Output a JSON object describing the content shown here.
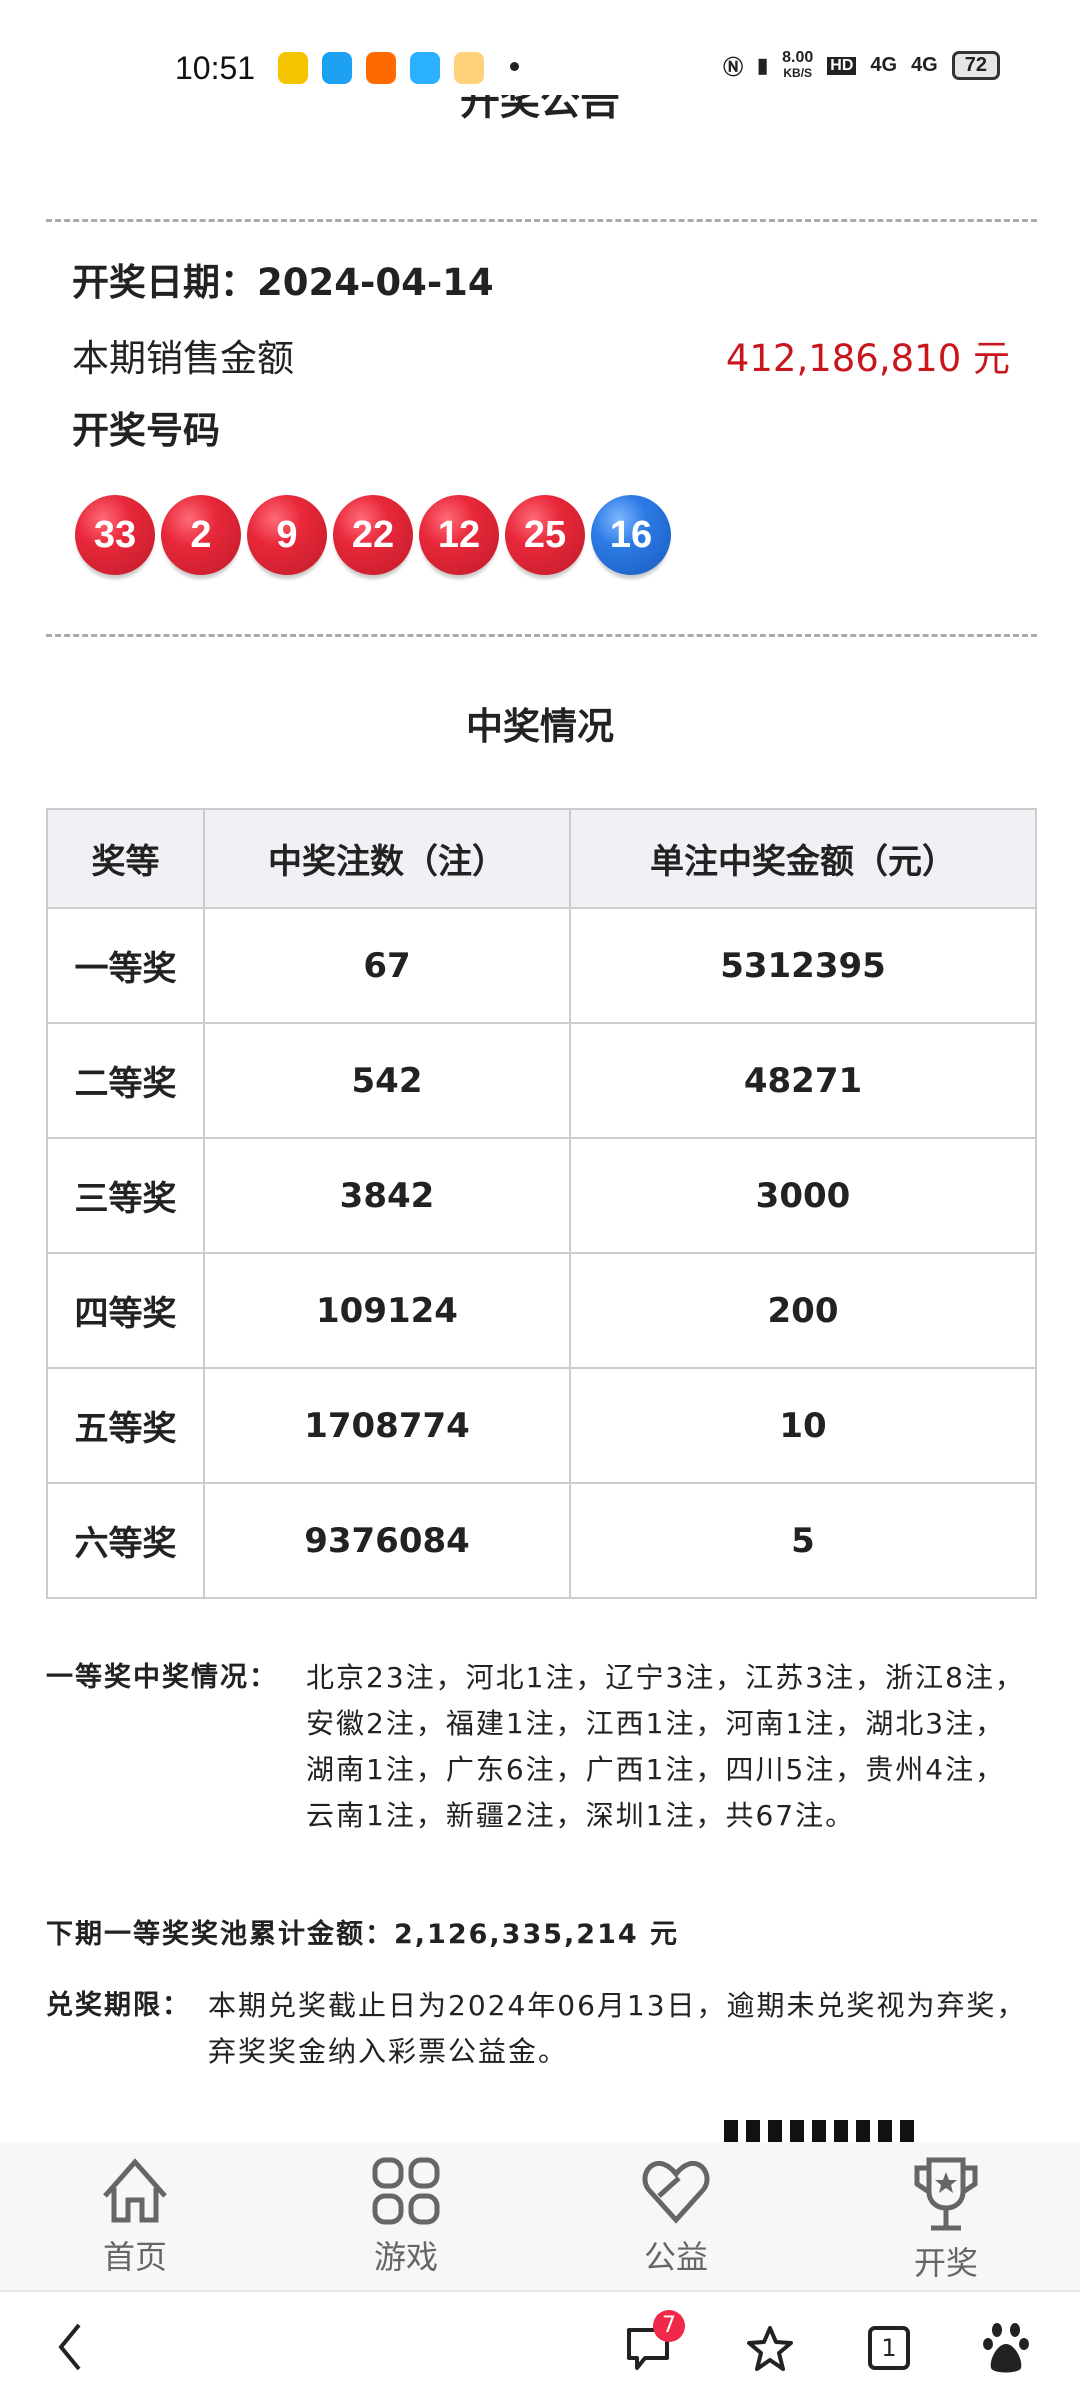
{
  "status_bar": {
    "time": "10:51",
    "speed": "8.00",
    "speed_unit": "KB/S",
    "network1": "4G",
    "network2": "4G",
    "battery": "72",
    "app_icon_colors": [
      "#f5c400",
      "#1da1f2",
      "#ff6a00",
      "#2ab0ff",
      "#ffd27a"
    ]
  },
  "page_title": "开奖公告",
  "draw": {
    "date_label": "开奖日期：",
    "date": "2024-04-14",
    "sales_label": "本期销售金额",
    "sales_value": "412,186,810 元",
    "numbers_label": "开奖号码",
    "red_balls": [
      "33",
      "2",
      "9",
      "22",
      "12",
      "25"
    ],
    "blue_balls": [
      "16"
    ],
    "colors": {
      "red": "#e8283a",
      "blue": "#2c7be5",
      "sales": "#c8161d"
    }
  },
  "prize_section": {
    "title": "中奖情况",
    "headers": [
      "奖等",
      "中奖注数（注）",
      "单注中奖金额（元）"
    ],
    "rows": [
      [
        "一等奖",
        "67",
        "5312395"
      ],
      [
        "二等奖",
        "542",
        "48271"
      ],
      [
        "三等奖",
        "3842",
        "3000"
      ],
      [
        "四等奖",
        "109124",
        "200"
      ],
      [
        "五等奖",
        "1708774",
        "10"
      ],
      [
        "六等奖",
        "9376084",
        "5"
      ]
    ]
  },
  "first_prize": {
    "label": "一等奖中奖情况：",
    "text": "北京23注，河北1注，辽宁3注，江苏3注，浙江8注，安徽2注，福建1注，江西1注，河南1注，湖北3注，湖南1注，广东6注，广西1注，四川5注，贵州4注，云南1注，新疆2注，深圳1注，共67注。"
  },
  "pool": {
    "label": "下期一等奖奖池累计金额：",
    "value": "2,126,335,214 元"
  },
  "deadline": {
    "label": "兑奖期限：",
    "text": "本期兑奖截止日为2024年06月13日，逾期未兑奖视为弃奖，弃奖奖金纳入彩票公益金。"
  },
  "bottom_nav": [
    {
      "label": "首页",
      "icon": "home-icon"
    },
    {
      "label": "游戏",
      "icon": "grid-icon"
    },
    {
      "label": "公益",
      "icon": "heart-handshake-icon"
    },
    {
      "label": "开奖",
      "icon": "trophy-icon"
    }
  ],
  "browser_bar": {
    "comment_badge": "7",
    "tab_count": "1"
  }
}
